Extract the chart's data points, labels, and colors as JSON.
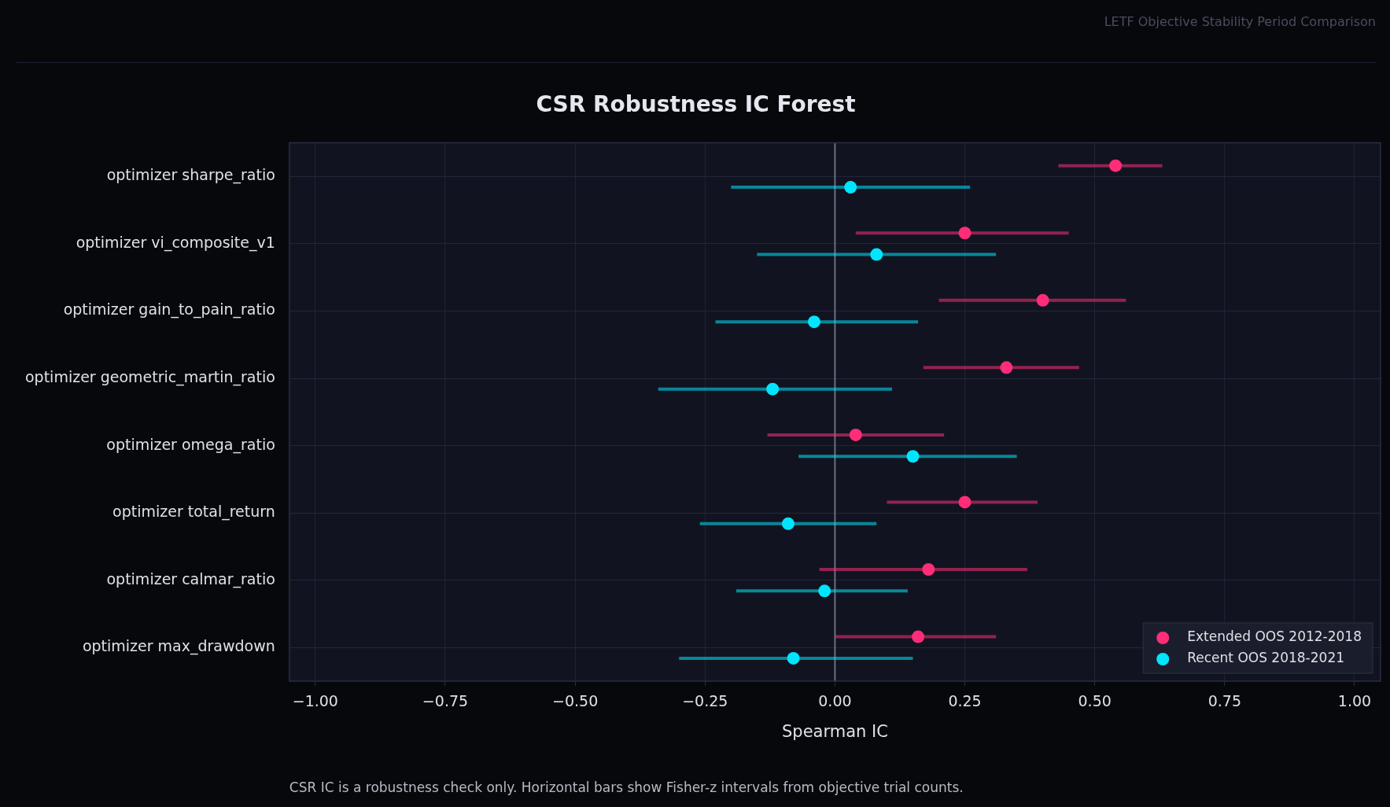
{
  "chart_data": {
    "type": "scatter",
    "orientation": "horizontal",
    "title": "CSR Robustness IC Forest",
    "subtitle": "LETF Objective Stability Period Comparison",
    "xlabel": "Spearman IC",
    "categories": [
      "optimizer sharpe_ratio",
      "optimizer vi_composite_v1",
      "optimizer gain_to_pain_ratio",
      "optimizer geometric_martin_ratio",
      "optimizer omega_ratio",
      "optimizer total_return",
      "optimizer calmar_ratio",
      "optimizer max_drawdown"
    ],
    "series": [
      {
        "name": "Extended OOS 2012-2018",
        "color": "#ff2d78",
        "values": [
          0.54,
          0.25,
          0.4,
          0.33,
          0.04,
          0.25,
          0.18,
          0.16
        ],
        "errors": [
          [
            0.43,
            0.63
          ],
          [
            0.04,
            0.45
          ],
          [
            0.2,
            0.56
          ],
          [
            0.17,
            0.47
          ],
          [
            -0.13,
            0.21
          ],
          [
            0.1,
            0.39
          ],
          [
            -0.03,
            0.37
          ],
          [
            0.0,
            0.31
          ]
        ]
      },
      {
        "name": "Recent OOS 2018-2021",
        "color": "#00e5ff",
        "values": [
          0.03,
          0.08,
          -0.04,
          -0.12,
          0.15,
          -0.09,
          -0.02,
          -0.08
        ],
        "errors": [
          [
            -0.2,
            0.26
          ],
          [
            -0.15,
            0.31
          ],
          [
            -0.23,
            0.16
          ],
          [
            -0.34,
            0.11
          ],
          [
            -0.07,
            0.35
          ],
          [
            -0.26,
            0.08
          ],
          [
            -0.19,
            0.14
          ],
          [
            -0.3,
            0.15
          ]
        ]
      }
    ],
    "xlim": [
      -1.05,
      1.05
    ],
    "xticks": [
      {
        "value": -1,
        "label": "−1.00"
      },
      {
        "value": -0.75,
        "label": "−0.75"
      },
      {
        "value": -0.5,
        "label": "−0.50"
      },
      {
        "value": -0.25,
        "label": "−0.25"
      },
      {
        "value": 0,
        "label": "0.00"
      },
      {
        "value": 0.25,
        "label": "0.25"
      },
      {
        "value": 0.5,
        "label": "0.50"
      },
      {
        "value": 0.75,
        "label": "0.75"
      },
      {
        "value": 1,
        "label": "1.00"
      }
    ],
    "ref_lines": [
      {
        "axis": "x",
        "value": 0,
        "color": "#6b6e80"
      }
    ],
    "grid": true,
    "legend": "bottom right",
    "marker": "circle",
    "annotations": [
      "CSR IC is a robustness check only. Horizontal bars show Fisher-z intervals from objective trial counts."
    ]
  }
}
